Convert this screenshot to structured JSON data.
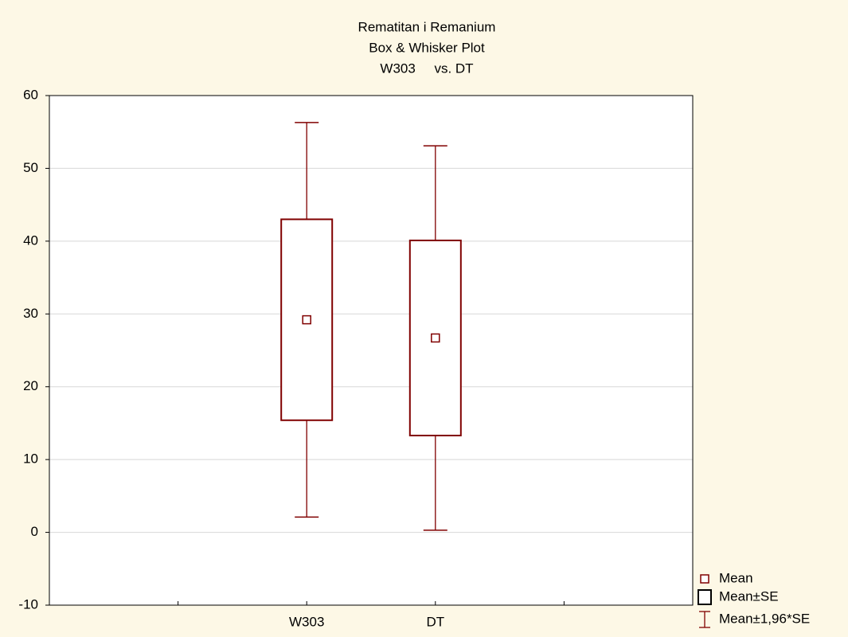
{
  "chart_data": {
    "type": "box",
    "title": [
      "Rematitan i Remanium",
      "Box & Whisker Plot",
      "W303     vs. DT"
    ],
    "categories": [
      null,
      "W303",
      "DT",
      null
    ],
    "mean": [
      null,
      29.2,
      26.7,
      null
    ],
    "box_low": [
      null,
      15.4,
      13.3,
      null
    ],
    "box_high": [
      null,
      43.0,
      40.1,
      null
    ],
    "whisker_low": [
      null,
      2.1,
      0.3,
      null
    ],
    "whisker_high": [
      null,
      56.3,
      53.1,
      null
    ],
    "color": "#800000",
    "ylim": [
      -10,
      60
    ],
    "yticks": [
      -10,
      0,
      10,
      20,
      30,
      40,
      50,
      60
    ],
    "grid": true,
    "legend": [
      "Mean",
      "Mean±SE",
      "Mean±1,96*SE"
    ],
    "legend_position": "lower right"
  }
}
